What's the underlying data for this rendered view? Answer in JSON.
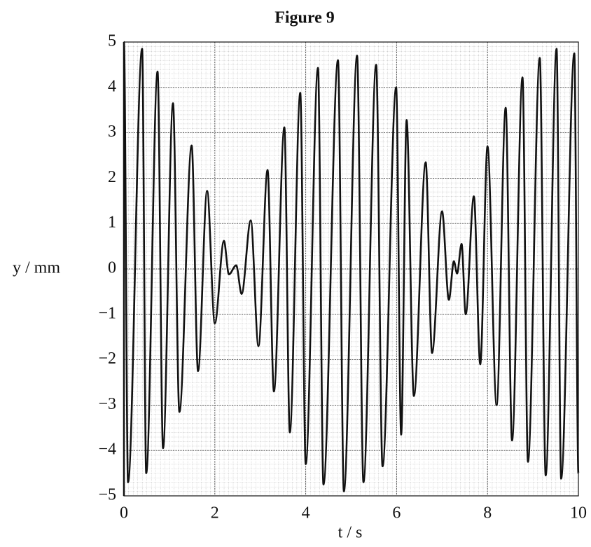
{
  "chart_data": {
    "type": "line",
    "title": "Figure 9",
    "x_label": "t / s",
    "y_label": "y / mm",
    "xlim": [
      0,
      10
    ],
    "ylim": [
      -5,
      5
    ],
    "xticks": [
      0,
      2,
      4,
      6,
      8,
      10
    ],
    "yticks": [
      {
        "value": -5,
        "label": "−5"
      },
      {
        "value": -4,
        "label": "−4"
      },
      {
        "value": -3,
        "label": "−3"
      },
      {
        "value": -2,
        "label": "−2"
      },
      {
        "value": -1,
        "label": "−1"
      },
      0,
      1,
      2,
      3,
      4,
      5
    ],
    "grid": true,
    "color": "#111111",
    "x": [
      0,
      0.09,
      0.4,
      0.49,
      0.74,
      0.86,
      1.08,
      1.22,
      1.49,
      1.63,
      1.83,
      2.0,
      2.2,
      2.31,
      2.47,
      2.59,
      2.79,
      2.96,
      3.16,
      3.3,
      3.53,
      3.65,
      3.88,
      4.0,
      4.27,
      4.39,
      4.71,
      4.84,
      5.13,
      5.27,
      5.55,
      5.69,
      5.99,
      6.1,
      6.22,
      6.38,
      6.64,
      6.78,
      7.0,
      7.15,
      7.26,
      7.33,
      7.43,
      7.52,
      7.7,
      7.84,
      8.0,
      8.2,
      8.4,
      8.54,
      8.77,
      8.89,
      9.15,
      9.28,
      9.52,
      9.62,
      9.91,
      10
    ],
    "values": [
      5,
      -4.7,
      4.85,
      -4.5,
      4.35,
      -3.95,
      3.65,
      -3.15,
      2.72,
      -2.25,
      1.72,
      -1.2,
      0.62,
      -0.12,
      0.08,
      -0.55,
      1.07,
      -1.7,
      2.18,
      -2.7,
      3.12,
      -3.6,
      3.88,
      -4.3,
      4.43,
      -4.75,
      4.6,
      -4.9,
      4.7,
      -4.7,
      4.5,
      -4.35,
      4.0,
      -3.65,
      3.28,
      -2.8,
      2.35,
      -1.85,
      1.27,
      -0.68,
      0.17,
      -0.1,
      0.55,
      -1.0,
      1.6,
      -2.1,
      2.7,
      -3.0,
      3.55,
      -3.78,
      4.22,
      -4.25,
      4.65,
      -4.55,
      4.85,
      -4.62,
      4.75,
      -4.5
    ]
  }
}
